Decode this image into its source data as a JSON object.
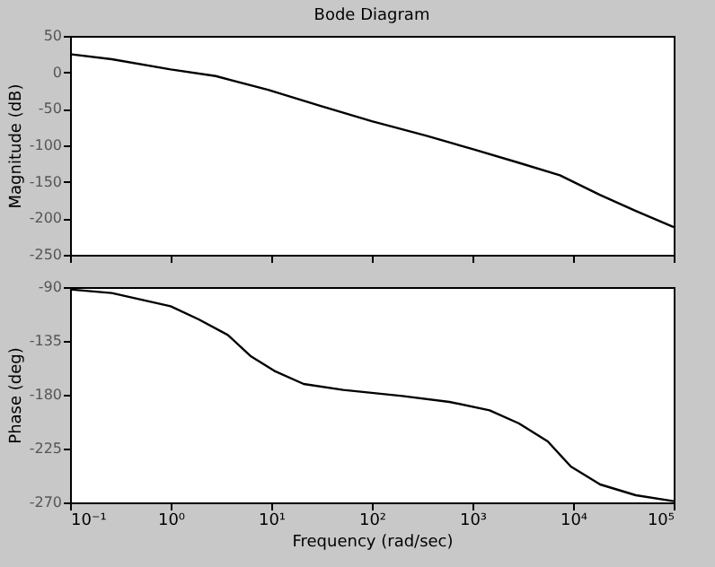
{
  "chart_data": [
    {
      "type": "line",
      "title": "Bode Diagram",
      "ylabel": "Magnitude (dB)",
      "log": "x",
      "grid": false,
      "tick_labels": "y",
      "xlim": [
        0.1,
        100000
      ],
      "xticks": [
        {
          "value": 0.1,
          "label": null
        },
        {
          "value": 1,
          "label": null
        },
        {
          "value": 10,
          "label": null
        },
        {
          "value": 100,
          "label": null
        },
        {
          "value": 1000,
          "label": null
        },
        {
          "value": 10000,
          "label": null
        },
        {
          "value": 100000,
          "label": null
        }
      ],
      "ylim": [
        -250,
        50
      ],
      "yticks": [
        -250,
        -200,
        -150,
        -100,
        -50,
        0,
        50
      ],
      "x": [
        0.1,
        0.26,
        1,
        2.8,
        9.3,
        31,
        100,
        350,
        1000,
        2900,
        7400,
        18600,
        42000,
        100000
      ],
      "series": [
        {
          "color": "#000000",
          "values": [
            25,
            18,
            4,
            -5,
            -24,
            -46,
            -67,
            -87,
            -105,
            -124,
            -141,
            -168,
            -190,
            -212
          ]
        }
      ]
    },
    {
      "type": "line",
      "ylabel": "Phase (deg)",
      "xlabel": "Frequency  (rad/sec)",
      "log": "x",
      "grid": false,
      "xlim": [
        0.1,
        100000
      ],
      "xticks": [
        {
          "value": 0.1,
          "label": "10⁻¹"
        },
        {
          "value": 1,
          "label": "10⁰"
        },
        {
          "value": 10,
          "label": "10¹"
        },
        {
          "value": 100,
          "label": "10²"
        },
        {
          "value": 1000,
          "label": "10³"
        },
        {
          "value": 10000,
          "label": "10⁴"
        },
        {
          "value": 100000,
          "label": "10⁵"
        }
      ],
      "ylim": [
        -270,
        -90
      ],
      "yticks": [
        -270,
        -225,
        -180,
        -135,
        -90
      ],
      "x": [
        0.1,
        0.26,
        1,
        1.9,
        3.7,
        6.3,
        10.7,
        21,
        52,
        200,
        590,
        1480,
        2900,
        5600,
        9500,
        18600,
        42000,
        100000
      ],
      "series": [
        {
          "color": "#000000",
          "values": [
            -92,
            -95,
            -106,
            -117,
            -130,
            -148,
            -160,
            -171,
            -176,
            -181,
            -186,
            -193,
            -204,
            -219,
            -240,
            -255,
            -264,
            -269
          ]
        }
      ]
    }
  ]
}
